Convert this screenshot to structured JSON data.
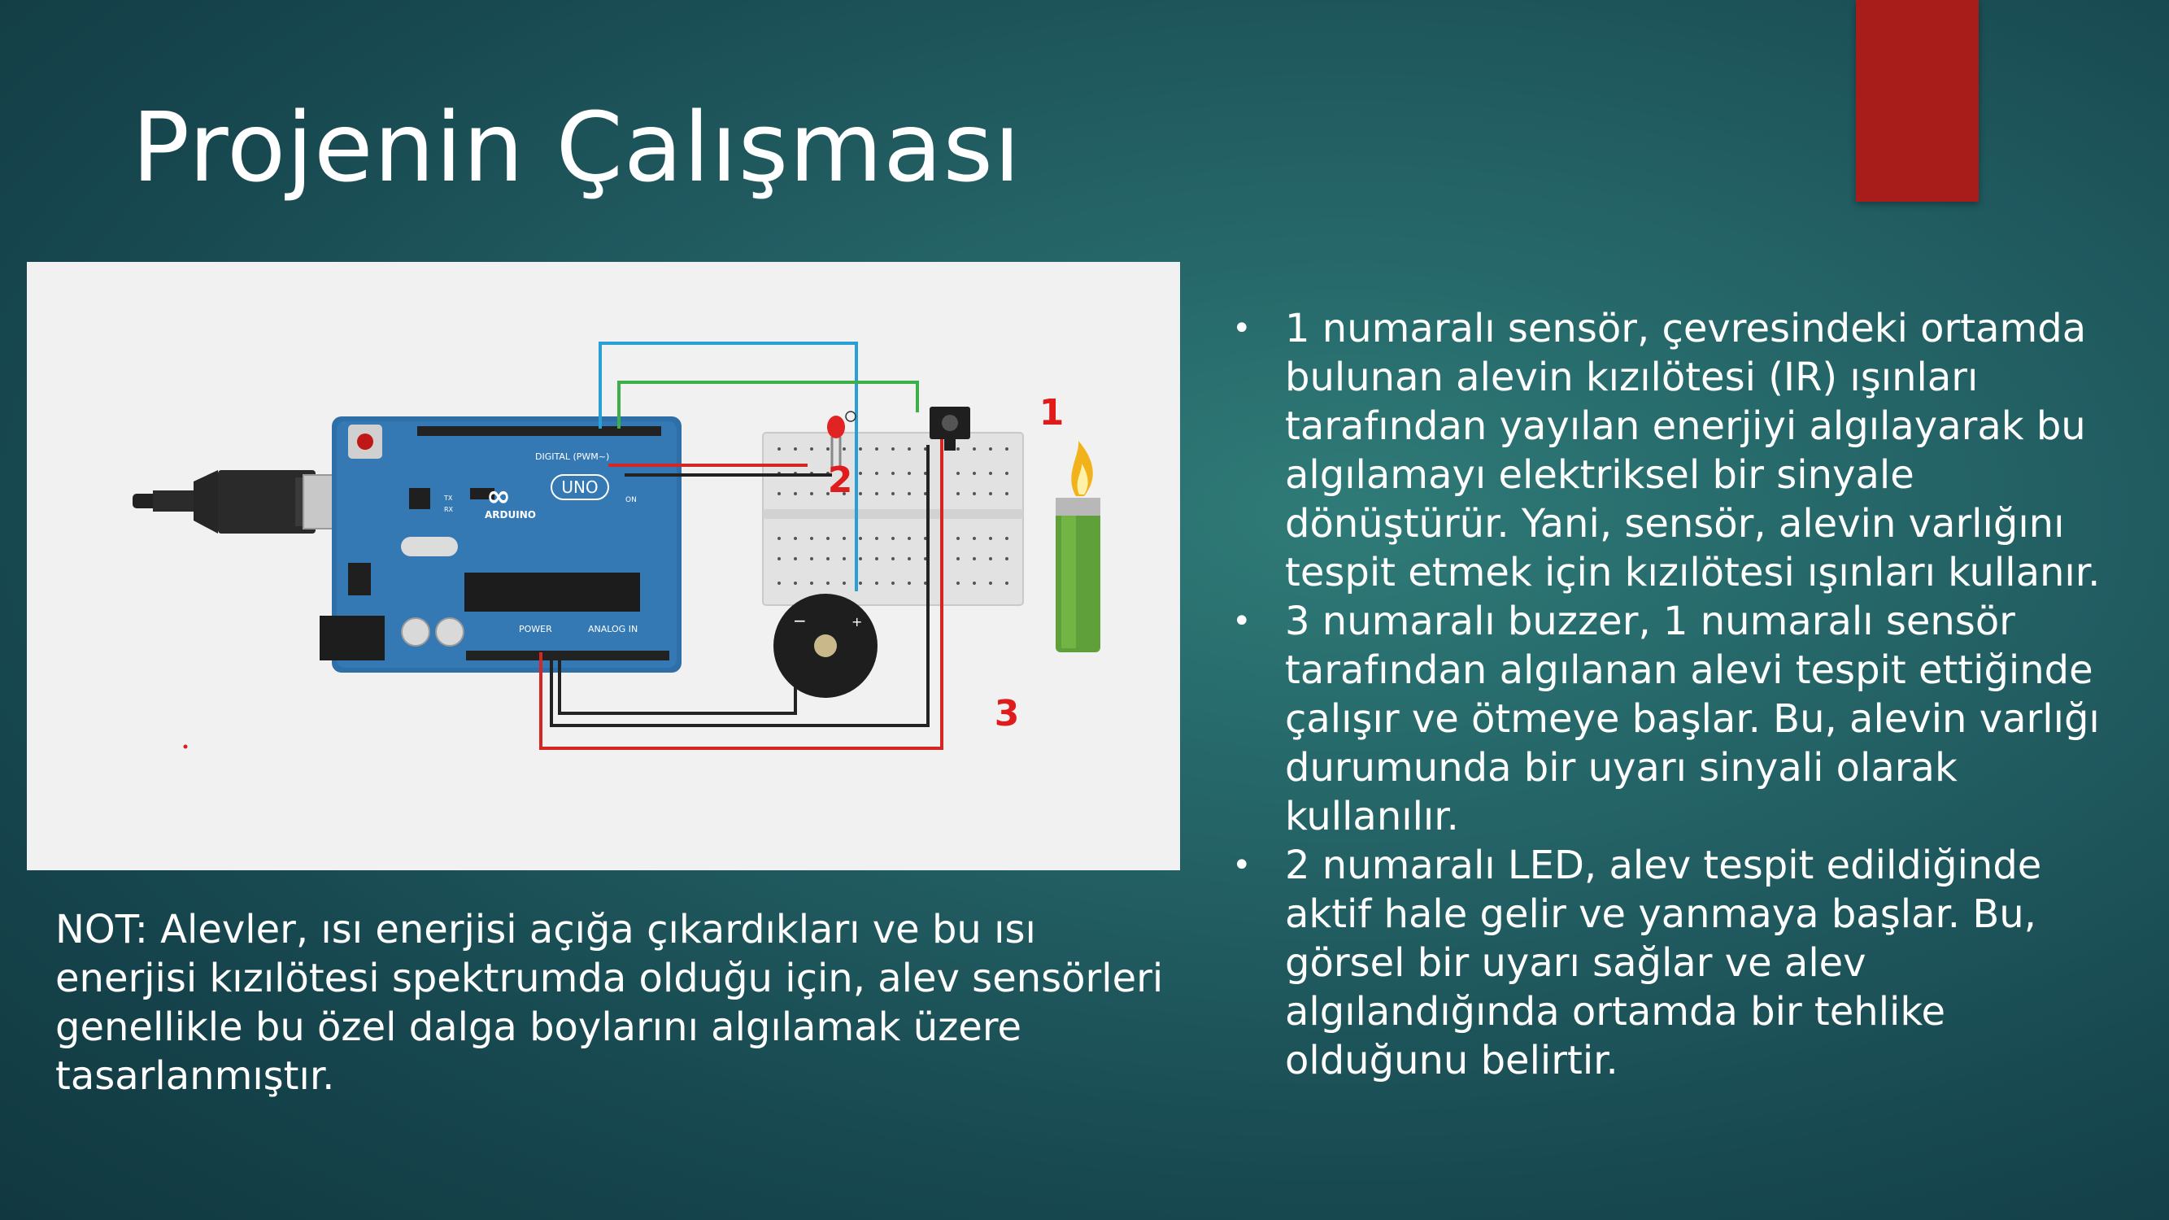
{
  "slide": {
    "title": "Projenin Çalışması",
    "accent_color": "#a81c1a",
    "background_color": "#1f5a5e"
  },
  "figure": {
    "labels": {
      "sensor": "1",
      "led": "2",
      "buzzer": "3"
    },
    "board_logo": "ARDUINO",
    "board_model": "UNO",
    "header_digital": "DIGITAL (PWM~)",
    "header_power": "POWER",
    "header_analog": "ANALOG IN",
    "on_label": "ON",
    "tx_label": "TX",
    "rx_label": "RX",
    "label_color": "#e01b1b"
  },
  "note": {
    "text": "NOT: Alevler, ısı enerjisi açığa çıkardıkları ve bu ısı enerjisi kızılötesi spektrumda olduğu için, alev sensörleri genellikle bu özel dalga boylarını algılamak üzere tasarlanmıştır."
  },
  "bullets": [
    {
      "marker": "•",
      "text": "1 numaralı sensör, çevresindeki ortamda bulunan alevin kızılötesi (IR) ışınları tarafından yayılan enerjiyi algılayarak bu algılamayı elektriksel bir sinyale dönüştürür. Yani, sensör, alevin varlığını tespit etmek için kızılötesi ışınları kullanır."
    },
    {
      "marker": "•",
      "text": "3 numaralı buzzer, 1 numaralı sensör tarafından algılanan alevi tespit ettiğinde çalışır ve ötmeye başlar. Bu, alevin varlığı durumunda bir uyarı sinyali olarak kullanılır."
    },
    {
      "marker": "•",
      "text": "2 numaralı LED, alev tespit edildiğinde aktif hale gelir ve yanmaya başlar. Bu, görsel bir uyarı sağlar ve alev algılandığında ortamda bir tehlike olduğunu belirtir."
    }
  ]
}
